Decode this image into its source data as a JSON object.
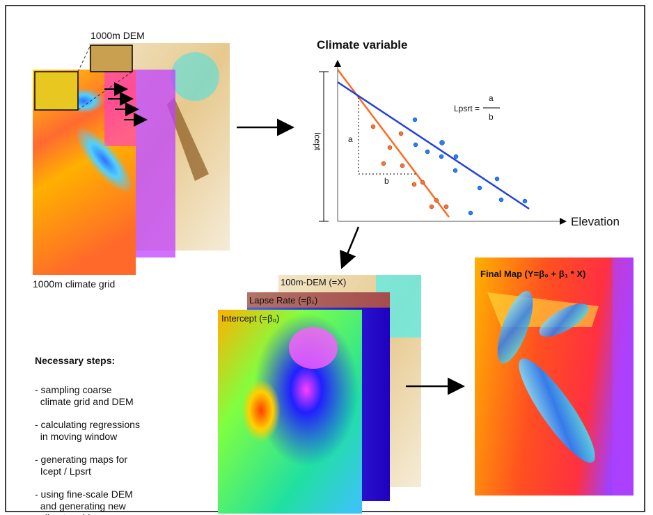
{
  "panels": {
    "dem_coarse": "1000m DEM",
    "climate_grid": "1000m climate grid"
  },
  "regression": {
    "y_label": "Climate variable",
    "x_label": "Elevation",
    "intercept_label": "Icept",
    "rise": "a",
    "run": "b",
    "formula": {
      "lhs": "Lpsrt =",
      "num": "a",
      "den": "b"
    }
  },
  "layers": [
    "100m-DEM (=X)",
    "Lapse Rate (=β₁)",
    "Intercept (=β₀)"
  ],
  "final_map": "Final Map (Y=β₀ + β₁ * X)",
  "steps": {
    "title": "Necessary steps:",
    "items": [
      [
        "- sampling coarse",
        "  climate grid and DEM"
      ],
      [
        "- calculating regressions",
        "  in moving window"
      ],
      [
        "- generating maps for",
        "  Icept / Lpsrt"
      ],
      [
        "- using fine-scale DEM",
        "  and generating new",
        "  climate grid"
      ]
    ]
  }
}
